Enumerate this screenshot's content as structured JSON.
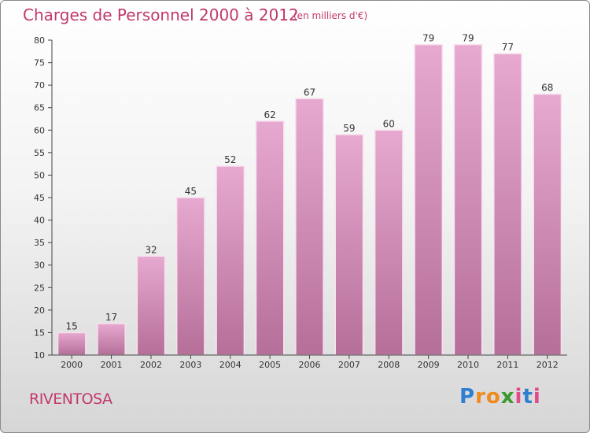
{
  "title": "Charges de Personnel 2000 à 2012",
  "subtitle": "(en milliers d'€)",
  "commune": "RIVENTOSA",
  "logo": {
    "letters": [
      "P",
      "r",
      "o",
      "x",
      "i",
      "t",
      "i"
    ],
    "colors": [
      "#2f7fd0",
      "#f08a1c",
      "#f08a1c",
      "#3a9a2e",
      "#e04a8a",
      "#2f7fd0",
      "#e04a8a"
    ]
  },
  "colors": {
    "bar_light": "#e7a9d0",
    "bar_dark": "#b56f99",
    "text_accent": "#c1386c"
  },
  "chart_data": {
    "type": "bar",
    "categories": [
      "2000",
      "2001",
      "2002",
      "2003",
      "2004",
      "2005",
      "2006",
      "2007",
      "2008",
      "2009",
      "2010",
      "2011",
      "2012"
    ],
    "values": [
      15,
      17,
      32,
      45,
      52,
      62,
      67,
      59,
      60,
      79,
      79,
      77,
      68
    ],
    "ylim": [
      10,
      80
    ],
    "yticks": [
      10,
      15,
      20,
      25,
      30,
      35,
      40,
      45,
      50,
      55,
      60,
      65,
      70,
      75,
      80
    ],
    "grid": false,
    "xlabel": "",
    "ylabel": ""
  }
}
